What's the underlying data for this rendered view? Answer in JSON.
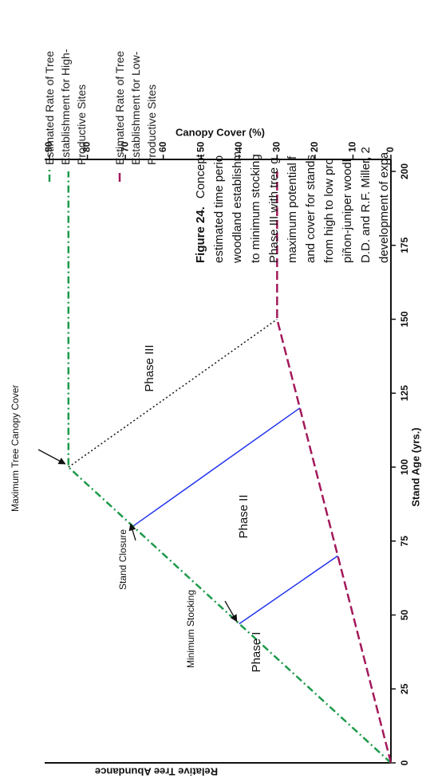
{
  "chart_data": {
    "type": "line",
    "xlabel": "Stand Age (yrs.)",
    "ylabel": "Relative Tree Abundance",
    "y2label": "Canopy Cover (%)",
    "xlim": [
      0,
      200
    ],
    "xticks": [
      0,
      25,
      50,
      75,
      100,
      125,
      150,
      175,
      200
    ],
    "y2lim": [
      0,
      90
    ],
    "y2ticks": [
      0,
      10,
      20,
      30,
      40,
      50,
      60,
      70,
      80,
      90
    ],
    "series": [
      {
        "name": "Estimated Rate of Tree Establishment for High-Productive Sites",
        "color": "#1e9a4b",
        "dash": "dashdot",
        "axis": "y2",
        "x": [
          0,
          100,
          200
        ],
        "values": [
          0,
          85,
          85
        ]
      },
      {
        "name": "Estimated Rate of Tree Establishment for Low-Productive Sites",
        "color": "#a3195b",
        "dash": "dashed",
        "axis": "y2",
        "x": [
          0,
          150,
          200
        ],
        "values": [
          0,
          30,
          30
        ]
      }
    ],
    "phase_boundaries": [
      {
        "color": "#2233ee",
        "dash": "solid",
        "x": [
          47,
          70
        ],
        "values": [
          40,
          14
        ]
      },
      {
        "color": "#2233ee",
        "dash": "solid",
        "x": [
          80,
          120
        ],
        "values": [
          68,
          24
        ]
      },
      {
        "color": "#111111",
        "dash": "dotted",
        "x": [
          100,
          150
        ],
        "values": [
          85,
          30
        ]
      }
    ],
    "annotations": [
      "Maximum Tree Canopy Cover",
      "Stand Closure",
      "Minimum Stocking"
    ],
    "phase_labels": [
      "Phase I",
      "Phase II",
      "Phase III"
    ]
  },
  "caption": {
    "label": "Figure 24.",
    "lines": [
      "Concept",
      "estimated time perio",
      "woodland establishm",
      "to minimum stocking",
      "Phase III with tree g",
      "maximum potential f",
      "and cover for stands",
      "from high to low pro",
      "piñon-juniper woodl",
      "D.D. and R.F. Miller, 2",
      "development of expa"
    ]
  }
}
